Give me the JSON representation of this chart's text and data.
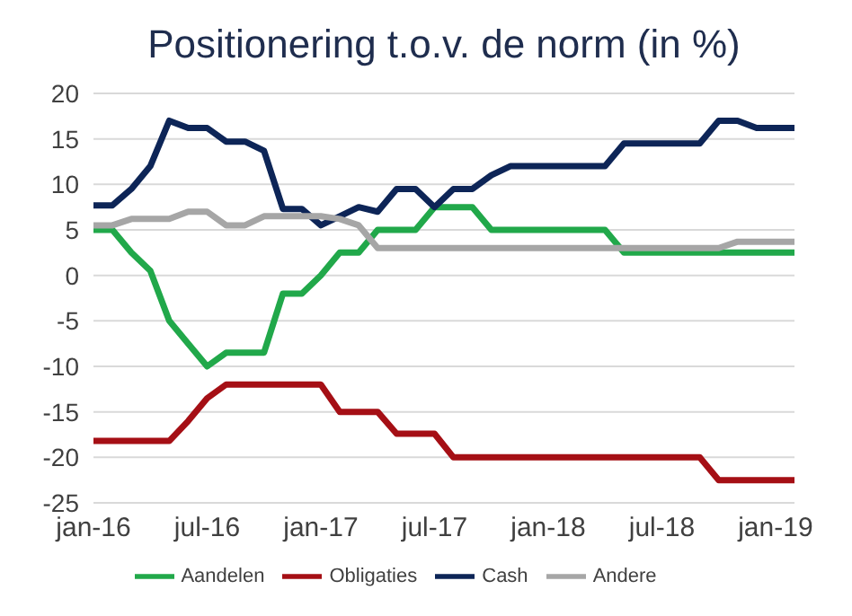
{
  "chart_data": {
    "type": "line",
    "title": "Positionering t.o.v. de norm (in %)",
    "categories": [
      "jan-16",
      null,
      null,
      null,
      null,
      null,
      "jul-16",
      null,
      null,
      null,
      null,
      null,
      "jan-17",
      null,
      null,
      null,
      null,
      null,
      "jul-17",
      null,
      null,
      null,
      null,
      null,
      "jan-18",
      null,
      null,
      null,
      null,
      null,
      "jul-18",
      null,
      null,
      null,
      null,
      null,
      "jan-19",
      null
    ],
    "series": [
      {
        "name": "Aandelen",
        "color": "#21a84a",
        "values": [
          5,
          5,
          2.5,
          0.5,
          -5,
          -7.5,
          -10,
          -8.5,
          -8.5,
          -8.5,
          -2,
          -2,
          0,
          2.5,
          2.5,
          5,
          5,
          5,
          7.5,
          7.5,
          7.5,
          5,
          5,
          5,
          5,
          5,
          5,
          5,
          2.5,
          2.5,
          2.5,
          2.5,
          2.5,
          2.5,
          2.5,
          2.5,
          2.5,
          2.5
        ]
      },
      {
        "name": "Obligaties",
        "color": "#a50f15",
        "values": [
          -18.2,
          -18.2,
          -18.2,
          -18.2,
          -18.2,
          -16,
          -13.5,
          -12,
          -12,
          -12,
          -12,
          -12,
          -12,
          -15,
          -15,
          -15,
          -17.4,
          -17.4,
          -17.4,
          -20,
          -20,
          -20,
          -20,
          -20,
          -20,
          -20,
          -20,
          -20,
          -20,
          -20,
          -20,
          -20,
          -20,
          -22.5,
          -22.5,
          -22.5,
          -22.5,
          -22.5
        ]
      },
      {
        "name": "Cash",
        "color": "#0d2557",
        "values": [
          7.7,
          7.7,
          9.5,
          12,
          17,
          16.2,
          16.2,
          14.7,
          14.7,
          13.7,
          7.3,
          7.3,
          5.5,
          6.5,
          7.5,
          7,
          9.5,
          9.5,
          7.5,
          9.5,
          9.5,
          11,
          12,
          12,
          12,
          12,
          12,
          12,
          14.5,
          14.5,
          14.5,
          14.5,
          14.5,
          17,
          17,
          16.2,
          16.2,
          16.2
        ]
      },
      {
        "name": "Andere",
        "color": "#a6a6a6",
        "values": [
          5.5,
          5.5,
          6.2,
          6.2,
          6.2,
          7,
          7,
          5.5,
          5.5,
          6.5,
          6.5,
          6.5,
          6.5,
          6.2,
          5.5,
          3,
          3,
          3,
          3,
          3,
          3,
          3,
          3,
          3,
          3,
          3,
          3,
          3,
          3,
          3,
          3,
          3,
          3,
          3,
          3.7,
          3.7,
          3.7,
          3.7
        ]
      }
    ],
    "ylim": [
      -25,
      20
    ],
    "yticks": [
      -25,
      -20,
      -15,
      -10,
      -5,
      0,
      5,
      10,
      15,
      20
    ],
    "grid": "y",
    "legend": "bottom",
    "marker": "none",
    "line_style": "solid"
  }
}
